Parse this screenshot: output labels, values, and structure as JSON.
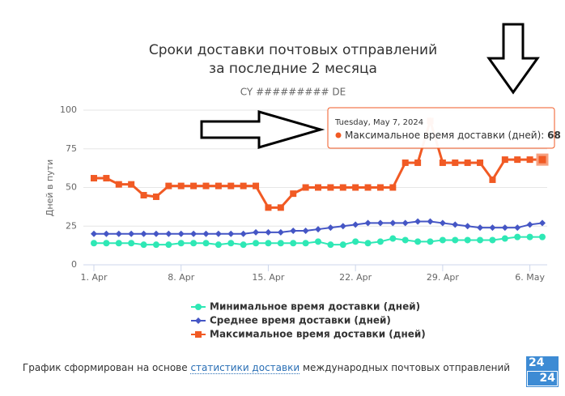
{
  "chart_data": {
    "type": "line",
    "title": "Сроки доставки почтовых отправлений",
    "title_line2": "за последние 2 месяца",
    "subtitle": "CY ######### DE",
    "y_label": "Дней в пути",
    "x": [
      "2024-04-01",
      "2024-04-02",
      "2024-04-03",
      "2024-04-04",
      "2024-04-05",
      "2024-04-06",
      "2024-04-07",
      "2024-04-08",
      "2024-04-09",
      "2024-04-10",
      "2024-04-11",
      "2024-04-12",
      "2024-04-13",
      "2024-04-14",
      "2024-04-15",
      "2024-04-16",
      "2024-04-17",
      "2024-04-18",
      "2024-04-19",
      "2024-04-20",
      "2024-04-21",
      "2024-04-22",
      "2024-04-23",
      "2024-04-24",
      "2024-04-25",
      "2024-04-26",
      "2024-04-27",
      "2024-04-28",
      "2024-04-29",
      "2024-04-30",
      "2024-05-01",
      "2024-05-02",
      "2024-05-03",
      "2024-05-04",
      "2024-05-05",
      "2024-05-06",
      "2024-05-07"
    ],
    "xticks": [
      {
        "value": "2024-04-01",
        "label": "1. Apr"
      },
      {
        "value": "2024-04-08",
        "label": "8. Apr"
      },
      {
        "value": "2024-04-15",
        "label": "15. Apr"
      },
      {
        "value": "2024-04-22",
        "label": "22. Apr"
      },
      {
        "value": "2024-04-29",
        "label": "29. Apr"
      },
      {
        "value": "2024-05-06",
        "label": "6. May"
      }
    ],
    "ylim": [
      0,
      100
    ],
    "yticks": [
      0,
      25,
      50,
      75,
      100
    ],
    "grid": true,
    "series": [
      {
        "name": "Минимальное время доставки (дней)",
        "color": "#2ee8b5",
        "marker": "circle",
        "values": [
          14,
          14,
          14,
          14,
          13,
          13,
          13,
          14,
          14,
          14,
          13,
          14,
          13,
          14,
          14,
          14,
          14,
          14,
          15,
          13,
          13,
          15,
          14,
          15,
          17,
          16,
          15,
          15,
          16,
          16,
          16,
          16,
          16,
          17,
          18,
          18,
          18
        ]
      },
      {
        "name": "Среднее время доставки (дней)",
        "color": "#4556c5",
        "marker": "diamond",
        "values": [
          20,
          20,
          20,
          20,
          20,
          20,
          20,
          20,
          20,
          20,
          20,
          20,
          20,
          21,
          21,
          21,
          22,
          22,
          23,
          24,
          25,
          26,
          27,
          27,
          27,
          27,
          28,
          28,
          27,
          26,
          25,
          24,
          24,
          24,
          24,
          26,
          27
        ]
      },
      {
        "name": "Максимальное время доставки (дней)",
        "color": "#f15a24",
        "marker": "square",
        "values": [
          56,
          56,
          52,
          52,
          45,
          44,
          51,
          51,
          51,
          51,
          51,
          51,
          51,
          51,
          37,
          37,
          46,
          50,
          50,
          50,
          50,
          50,
          50,
          50,
          50,
          66,
          66,
          93,
          66,
          66,
          66,
          66,
          55,
          68,
          68,
          68,
          68
        ]
      }
    ],
    "tooltip": {
      "date": "Tuesday, May 7, 2024"
    }
  },
  "footer": {
    "before": "График сформирован на основе",
    "link": "статистики доставки",
    "after": "международных почтовых отправлений"
  },
  "logo": [
    "24",
    "24"
  ]
}
